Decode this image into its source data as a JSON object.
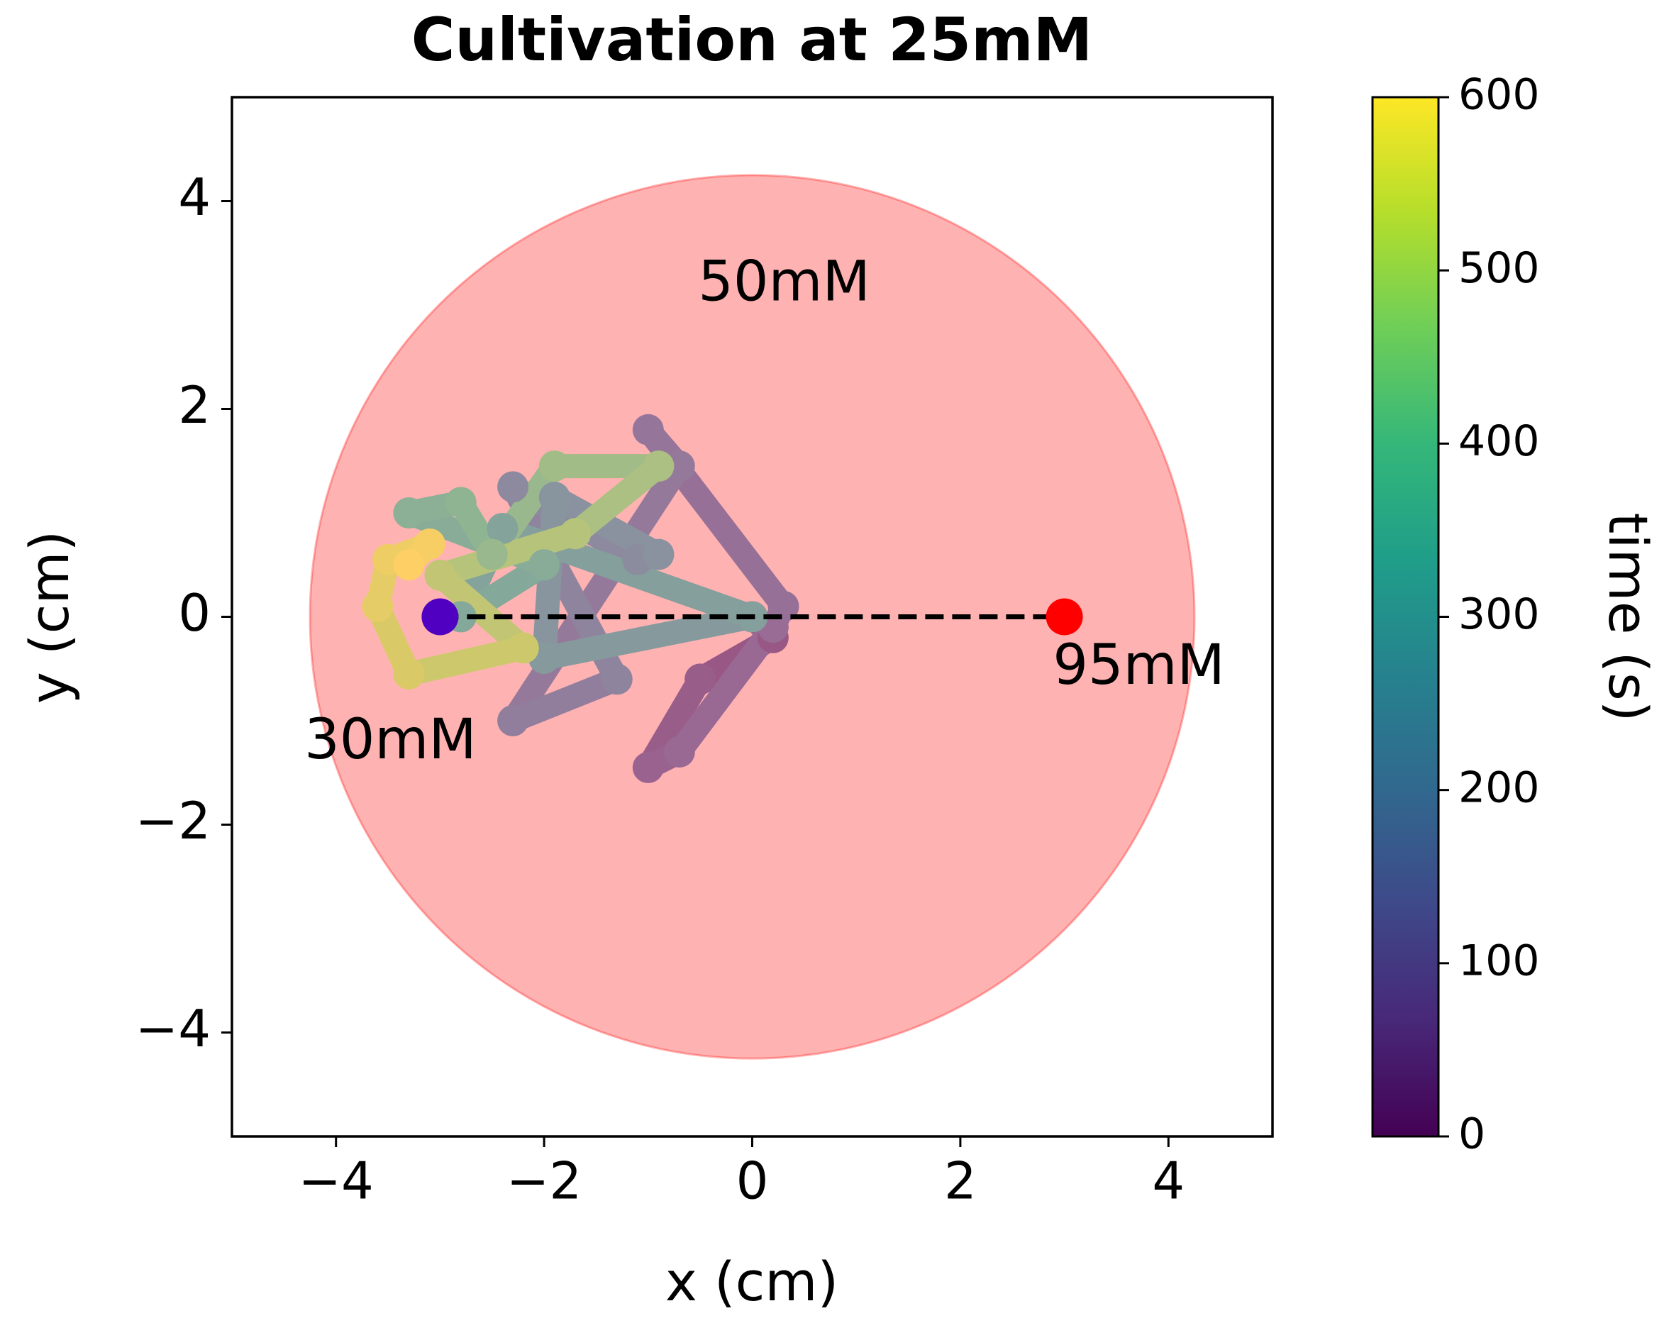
{
  "chart_data": {
    "type": "trajectory",
    "title": "Cultivation at 25mM",
    "xlabel": "x (cm)",
    "ylabel": "y (cm)",
    "xlim": [
      -5,
      5
    ],
    "ylim": [
      -5,
      5
    ],
    "xticks": [
      {
        "value": -4,
        "label": "−4"
      },
      {
        "value": -2,
        "label": "−2"
      },
      0,
      2,
      4
    ],
    "yticks": [
      {
        "value": -4,
        "label": "−4"
      },
      {
        "value": -2,
        "label": "−2"
      },
      0,
      2,
      4
    ],
    "grid": false,
    "colormap": "viridis",
    "colorbar": {
      "label": "time (s)",
      "clim": [
        0,
        600
      ],
      "ticks": [
        0,
        100,
        200,
        300,
        400,
        500,
        600
      ]
    },
    "circle": {
      "center": [
        0,
        0
      ],
      "radius": 4.25,
      "color": "#ff0000",
      "label": "50mM"
    },
    "start": {
      "x": -3,
      "y": 0,
      "color": "#5000c0",
      "label": "30mM"
    },
    "end": {
      "x": 3,
      "y": 0,
      "color": "#ff0000",
      "label": "95mM"
    },
    "trajectory": {
      "x": [
        0,
        0.2,
        -0.5,
        -1.0,
        -0.7,
        0.2,
        0.3,
        -1.0,
        -0.7,
        -2.3,
        -1.3,
        -2.3,
        -1.1,
        -0.9,
        -1.9,
        -2.0,
        0.0,
        -2.4,
        -2.8,
        -2.0,
        -3.3,
        -2.8,
        -2.5,
        -1.9,
        -0.9,
        -1.7,
        -3.0,
        -2.2,
        -3.3,
        -3.6,
        -3.5,
        -3.1,
        -3.3
      ],
      "y": [
        0,
        -0.2,
        -0.6,
        -1.45,
        -1.3,
        -0.1,
        0.1,
        1.8,
        1.45,
        -1.0,
        -0.6,
        1.25,
        0.55,
        0.6,
        1.15,
        -0.4,
        0.0,
        0.85,
        0.0,
        0.5,
        1.0,
        1.1,
        0.6,
        1.45,
        1.45,
        0.8,
        0.4,
        -0.3,
        -0.55,
        0.1,
        0.55,
        0.7,
        0.5
      ],
      "t": [
        0,
        20,
        40,
        60,
        75,
        90,
        105,
        125,
        140,
        160,
        180,
        200,
        220,
        240,
        260,
        280,
        300,
        320,
        340,
        360,
        380,
        400,
        420,
        440,
        460,
        480,
        500,
        520,
        540,
        560,
        575,
        590,
        600
      ]
    }
  }
}
